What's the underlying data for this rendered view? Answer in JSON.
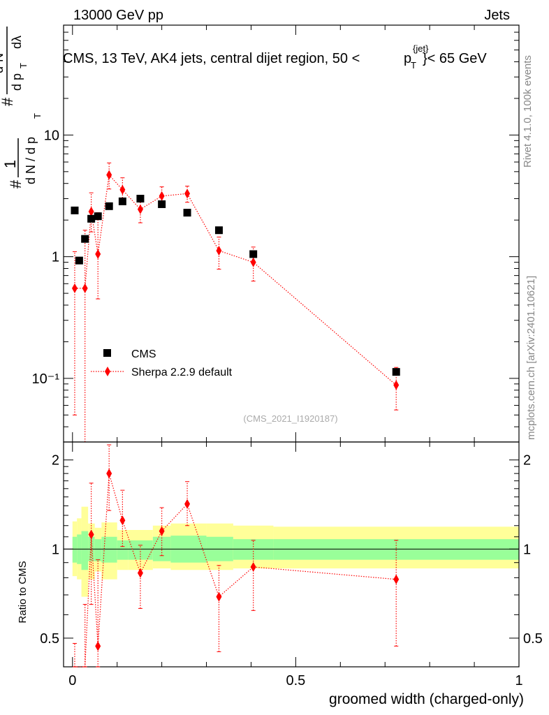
{
  "header": {
    "left": "13000 GeV pp",
    "right": "Jets"
  },
  "title_parts": {
    "main": "CMS, 13 TeV, AK4 jets, central dijet region, 50 <",
    "p": "p",
    "sup": "{jet}",
    "sub": "T",
    "end": "}< 65 GeV"
  },
  "side_labels": {
    "rivet": "Rivet 4.1.0,  100k events",
    "mcplots": "mcplots.cern.ch [arXiv:2401.10621]"
  },
  "analysis_tag": "(CMS_2021_I1920187)",
  "ylabel_parts": {
    "hash": "#",
    "one": "1",
    "dN": "d N / d p",
    "T": "T",
    "num": "d²N",
    "den": "d p",
    "dl": "dλ"
  },
  "xlabel": "groomed width (charged-only)",
  "ratio_ylabel": "Ratio to CMS",
  "colors": {
    "data": "#000000",
    "mc": "#ff0000",
    "band_outer": "#ffff99",
    "band_inner": "#99ff99"
  },
  "legend": {
    "data": "CMS",
    "mc": "Sherpa 2.2.9 default"
  },
  "chart_data": {
    "type": "scatter",
    "title": "CMS, 13 TeV, AK4 jets, central dijet region, 50 < p_T^{jet} < 65 GeV",
    "xlabel": "groomed width (charged-only)",
    "ylabel": "1/(dN/dpT) d²N/(dpT dλ)",
    "xlim": [
      -0.02,
      1.0
    ],
    "ylim": [
      0.03,
      80
    ],
    "yscale": "log",
    "xticks": [
      0,
      0.5,
      1
    ],
    "xtick_labels": [
      "0",
      "0.5",
      "1"
    ],
    "yticks": [
      0.1,
      1,
      10
    ],
    "ytick_labels": [
      "10⁻¹",
      "1",
      "10"
    ],
    "ratio_ylim": [
      0.4,
      2.3
    ],
    "ratio_yticks": [
      0.5,
      1,
      2
    ],
    "ratio_ytick_labels": [
      "0.5",
      "1",
      "2"
    ],
    "series": [
      {
        "name": "CMS",
        "x": [
          0.005,
          0.015,
          0.028,
          0.042,
          0.057,
          0.082,
          0.112,
          0.152,
          0.2,
          0.257,
          0.328,
          0.405,
          0.725
        ],
        "values": [
          2.4,
          0.93,
          1.4,
          2.05,
          2.15,
          2.6,
          2.85,
          3.0,
          2.7,
          2.3,
          1.65,
          1.05,
          0.113
        ]
      },
      {
        "name": "Sherpa 2.2.9 default",
        "x": [
          0.005,
          0.028,
          0.042,
          0.057,
          0.082,
          0.112,
          0.152,
          0.2,
          0.257,
          0.328,
          0.405,
          0.725
        ],
        "values": [
          0.55,
          0.55,
          2.35,
          1.05,
          4.7,
          3.55,
          2.45,
          3.15,
          3.3,
          1.12,
          0.9,
          0.088
        ],
        "err_low": [
          0.5,
          0.53,
          0.75,
          0.6,
          1.1,
          0.65,
          0.55,
          0.5,
          0.5,
          0.33,
          0.27,
          0.033
        ],
        "err_high": [
          0.55,
          1.1,
          1.0,
          1.25,
          1.2,
          0.9,
          0.5,
          0.6,
          0.5,
          0.33,
          0.3,
          0.035
        ]
      }
    ],
    "ratio": {
      "x": [
        0.005,
        0.028,
        0.042,
        0.057,
        0.082,
        0.112,
        0.152,
        0.2,
        0.257,
        0.328,
        0.405,
        0.725
      ],
      "values": [
        0.25,
        0.35,
        1.12,
        0.47,
        1.8,
        1.25,
        0.83,
        1.15,
        1.42,
        0.69,
        0.87,
        0.79
      ],
      "err_low": [
        0.2,
        0.2,
        0.47,
        0.3,
        0.45,
        0.23,
        0.2,
        0.2,
        0.22,
        0.24,
        0.25,
        0.32
      ],
      "err_high": [
        0.23,
        0.3,
        0.55,
        0.45,
        0.45,
        0.33,
        0.2,
        0.23,
        0.27,
        0.19,
        0.2,
        0.28
      ]
    },
    "bands": {
      "edges": [
        0.0,
        0.01,
        0.02,
        0.035,
        0.05,
        0.065,
        0.1,
        0.125,
        0.18,
        0.22,
        0.3,
        0.36,
        0.45,
        1.0
      ],
      "outer_low": [
        0.81,
        0.79,
        0.69,
        0.79,
        0.84,
        0.79,
        0.85,
        0.85,
        0.86,
        0.85,
        0.85,
        0.86,
        0.86
      ],
      "outer_high": [
        1.24,
        1.27,
        1.39,
        1.22,
        1.18,
        1.23,
        1.16,
        1.16,
        1.2,
        1.22,
        1.22,
        1.2,
        1.19
      ],
      "inner_low": [
        0.9,
        0.89,
        0.85,
        0.91,
        0.91,
        0.9,
        0.92,
        0.92,
        0.91,
        0.9,
        0.91,
        0.92,
        0.92
      ],
      "inner_high": [
        1.1,
        1.12,
        1.15,
        1.1,
        1.08,
        1.1,
        1.07,
        1.07,
        1.1,
        1.11,
        1.1,
        1.08,
        1.08
      ]
    }
  }
}
